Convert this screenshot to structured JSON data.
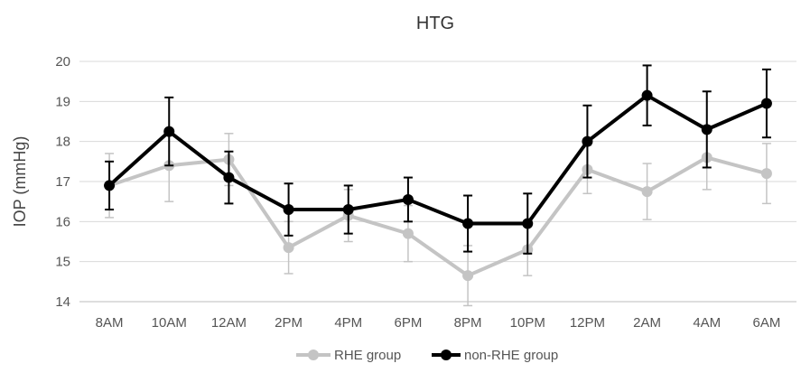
{
  "chart_data": {
    "type": "line",
    "title": "HTG",
    "xlabel": "",
    "ylabel": "IOP (mmHg)",
    "ylim": [
      14,
      20
    ],
    "yticks": [
      14,
      15,
      16,
      17,
      18,
      19,
      20
    ],
    "grid": true,
    "legend_position": "bottom",
    "categories": [
      "8AM",
      "10AM",
      "12AM",
      "2PM",
      "4PM",
      "6PM",
      "8PM",
      "10PM",
      "12PM",
      "2AM",
      "4AM",
      "6AM"
    ],
    "series": [
      {
        "name": "RHE group",
        "color": "#c4c4c4",
        "values": [
          16.9,
          17.4,
          17.55,
          15.35,
          16.15,
          15.7,
          14.65,
          15.3,
          17.3,
          16.75,
          17.6,
          17.2
        ],
        "error": [
          0.8,
          0.9,
          0.65,
          0.65,
          0.65,
          0.7,
          0.75,
          0.65,
          0.6,
          0.7,
          0.8,
          0.75
        ]
      },
      {
        "name": "non-RHE group",
        "color": "#000000",
        "values": [
          16.9,
          18.25,
          17.1,
          16.3,
          16.3,
          16.55,
          15.95,
          15.95,
          18.0,
          19.15,
          18.3,
          18.95
        ],
        "error": [
          0.6,
          0.85,
          0.65,
          0.65,
          0.6,
          0.55,
          0.7,
          0.75,
          0.9,
          0.75,
          0.95,
          0.85
        ]
      }
    ]
  }
}
